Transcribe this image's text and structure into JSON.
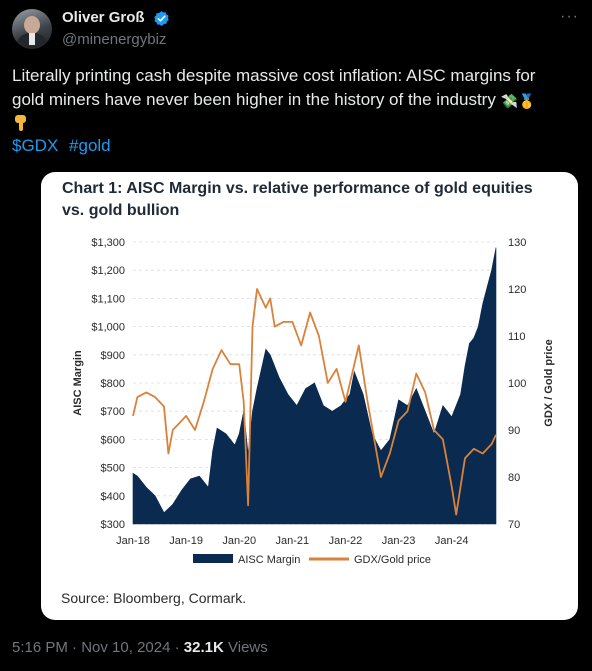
{
  "author": {
    "name": "Oliver Groß",
    "handle": "@minenergybiz",
    "more_icon": "more-icon",
    "verified_color": "#1d9bf0"
  },
  "tweet": {
    "text": "Literally printing cash despite massive cost inflation: AISC margins for gold miners have never been higher in the history of the industry",
    "emojis": "💸🥇",
    "hashtags": [
      "$GDX",
      "#gold"
    ],
    "link_color": "#1d9bf0"
  },
  "card": {
    "title": "Chart 1: AISC Margin vs. relative performance of gold equities vs. gold bullion",
    "source": "Source: Bloomberg, Cormark."
  },
  "chart_data": {
    "type": "area",
    "title": "Chart 1: AISC Margin vs. relative performance of gold equities vs. gold bullion",
    "ylabel": "AISC Margin",
    "y2label": "GDX / Gold price",
    "x_ticks": [
      "Jan-18",
      "Jan-19",
      "Jan-20",
      "Jan-21",
      "Jan-22",
      "Jan-23",
      "Jan-24"
    ],
    "y_ticks": [
      "$1,300",
      "$1,200",
      "$1,100",
      "$1,000",
      "$900",
      "$800",
      "$700",
      "$600",
      "$500",
      "$400",
      "$300"
    ],
    "y2_ticks": [
      "130",
      "120",
      "110",
      "100",
      "90",
      "80",
      "70"
    ],
    "ylim": [
      300,
      1300
    ],
    "y2lim": [
      70,
      130
    ],
    "grid": true,
    "legend_position": "bottom",
    "series": [
      {
        "name": "AISC Margin",
        "type": "area",
        "color": "#0b2a4f",
        "x": [
          "2018-01",
          "2018-02",
          "2018-04",
          "2018-06",
          "2018-08",
          "2018-10",
          "2018-12",
          "2019-02",
          "2019-04",
          "2019-06",
          "2019-07",
          "2019-08",
          "2019-10",
          "2019-12",
          "2020-01",
          "2020-02",
          "2020-03",
          "2020-04",
          "2020-05",
          "2020-07",
          "2020-08",
          "2020-10",
          "2020-12",
          "2021-02",
          "2021-04",
          "2021-06",
          "2021-08",
          "2021-10",
          "2021-12",
          "2022-02",
          "2022-03",
          "2022-05",
          "2022-07",
          "2022-09",
          "2022-11",
          "2023-01",
          "2023-03",
          "2023-05",
          "2023-07",
          "2023-09",
          "2023-11",
          "2024-01",
          "2024-03",
          "2024-04",
          "2024-05",
          "2024-06",
          "2024-07",
          "2024-08",
          "2024-09",
          "2024-10",
          "2024-11"
        ],
        "values": [
          480,
          470,
          430,
          400,
          340,
          370,
          420,
          460,
          470,
          430,
          560,
          640,
          620,
          580,
          620,
          700,
          550,
          700,
          780,
          920,
          900,
          820,
          760,
          720,
          780,
          800,
          720,
          700,
          720,
          760,
          840,
          760,
          620,
          560,
          600,
          740,
          720,
          780,
          700,
          620,
          720,
          680,
          760,
          860,
          940,
          960,
          1000,
          1080,
          1140,
          1200,
          1280
        ]
      },
      {
        "name": "GDX/Gold price",
        "type": "line",
        "color": "#d9823b",
        "x": [
          "2018-01",
          "2018-02",
          "2018-04",
          "2018-06",
          "2018-08",
          "2018-09",
          "2018-10",
          "2018-12",
          "2019-01",
          "2019-03",
          "2019-05",
          "2019-07",
          "2019-09",
          "2019-11",
          "2020-01",
          "2020-02",
          "2020-03",
          "2020-04",
          "2020-05",
          "2020-07",
          "2020-08",
          "2020-09",
          "2020-11",
          "2021-01",
          "2021-03",
          "2021-05",
          "2021-07",
          "2021-09",
          "2021-11",
          "2022-01",
          "2022-04",
          "2022-06",
          "2022-09",
          "2022-11",
          "2023-01",
          "2023-03",
          "2023-05",
          "2023-07",
          "2023-09",
          "2023-11",
          "2024-01",
          "2024-02",
          "2024-04",
          "2024-06",
          "2024-08",
          "2024-10",
          "2024-11"
        ],
        "values": [
          93,
          97,
          98,
          97,
          95,
          85,
          90,
          92,
          93,
          90,
          96,
          103,
          107,
          104,
          104,
          96,
          74,
          112,
          120,
          116,
          118,
          112,
          113,
          113,
          108,
          115,
          110,
          100,
          103,
          96,
          108,
          96,
          80,
          85,
          92,
          94,
          102,
          98,
          90,
          88,
          78,
          72,
          84,
          86,
          85,
          87,
          89
        ]
      }
    ]
  },
  "footer": {
    "time": "5:16 PM",
    "date": "Nov 10, 2024",
    "views_count": "32.1K",
    "views_label": "Views"
  }
}
